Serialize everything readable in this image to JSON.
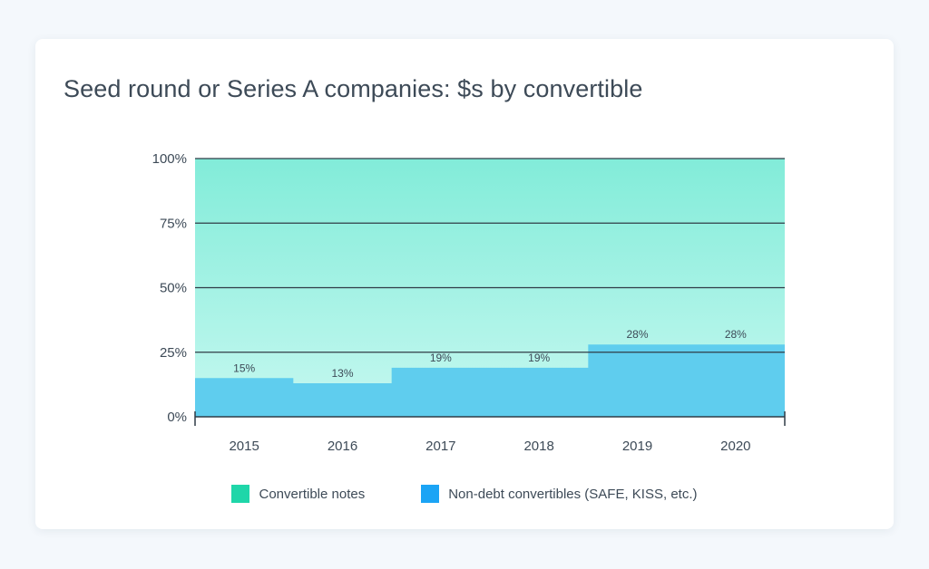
{
  "chart_data": {
    "type": "area",
    "title": "Seed round or Series A companies: $s by convertible",
    "categories": [
      "2015",
      "2016",
      "2017",
      "2018",
      "2019",
      "2020"
    ],
    "series": [
      {
        "name": "Convertible notes",
        "values": [
          85,
          87,
          81,
          81,
          72,
          72
        ],
        "color": "#1fd6a9"
      },
      {
        "name": "Non-debt convertibles (SAFE, KISS, etc.)",
        "values": [
          15,
          13,
          19,
          19,
          28,
          28
        ],
        "color": "#1ba4f5"
      }
    ],
    "data_labels": [
      "15%",
      "13%",
      "19%",
      "19%",
      "28%",
      "28%"
    ],
    "y_ticks": [
      0,
      25,
      50,
      75,
      100
    ],
    "y_tick_labels": [
      "0%",
      "25%",
      "50%",
      "75%",
      "100%"
    ],
    "ylim": [
      0,
      100
    ],
    "xlabel": "",
    "ylabel": "",
    "legend_position": "bottom",
    "stacked": true,
    "step": true
  },
  "colors": {
    "notes_area_top": "#82ecd9",
    "notes_area_bottom": "#c6f8f0",
    "non_debt_area": "#5fcdee",
    "grid": "#2f3b46",
    "text": "#3d4a57"
  }
}
